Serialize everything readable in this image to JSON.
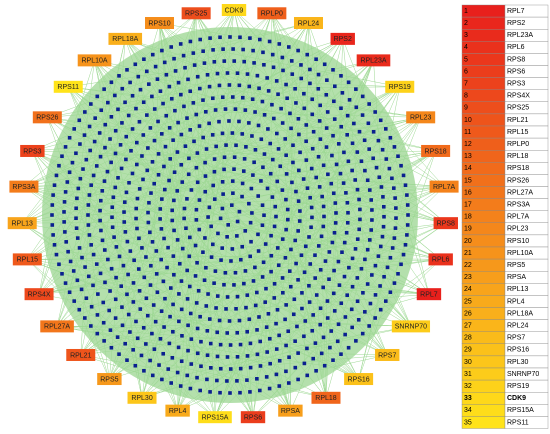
{
  "nodes": [
    "CDK9",
    "RPLP0",
    "RPL24",
    "RPS2",
    "RPL23A",
    "RPS19",
    "RPL23",
    "RPS18",
    "RPL7A",
    "RPS8",
    "RPL6",
    "RPL7",
    "SNRNP70",
    "RPS7",
    "RPS16",
    "RPL18",
    "RPSA",
    "RPS6",
    "RPS15A",
    "RPL4",
    "RPL30",
    "RPS5",
    "RPL21",
    "RPL27A",
    "RPS4X",
    "RPL15",
    "RPL13",
    "RPS3A",
    "RPS3",
    "RPS26",
    "RPS11",
    "RPL10A",
    "RPL18A",
    "RPS10",
    "RPS25"
  ],
  "table": {
    "rows": [
      [
        1,
        "RPL7"
      ],
      [
        2,
        "RPS2"
      ],
      [
        3,
        "RPL23A"
      ],
      [
        4,
        "RPL6"
      ],
      [
        5,
        "RPS8"
      ],
      [
        6,
        "RPS6"
      ],
      [
        7,
        "RPS3"
      ],
      [
        8,
        "RPS4X"
      ],
      [
        9,
        "RPS25"
      ],
      [
        10,
        "RPL21"
      ],
      [
        11,
        "RPL15"
      ],
      [
        12,
        "RPLP0"
      ],
      [
        13,
        "RPL18"
      ],
      [
        14,
        "RPS18"
      ],
      [
        15,
        "RPS26"
      ],
      [
        16,
        "RPL27A"
      ],
      [
        17,
        "RPS3A"
      ],
      [
        18,
        "RPL7A"
      ],
      [
        19,
        "RPL23"
      ],
      [
        20,
        "RPS10"
      ],
      [
        21,
        "RPL10A"
      ],
      [
        22,
        "RPS5"
      ],
      [
        23,
        "RPSA"
      ],
      [
        24,
        "RPL13"
      ],
      [
        25,
        "RPL4"
      ],
      [
        26,
        "RPL18A"
      ],
      [
        27,
        "RPL24"
      ],
      [
        28,
        "RPS7"
      ],
      [
        29,
        "RPS16"
      ],
      [
        30,
        "RPL30"
      ],
      [
        31,
        "SNRNP70"
      ],
      [
        32,
        "RPS19"
      ],
      [
        33,
        "CDK9"
      ],
      [
        34,
        "RPS15A"
      ],
      [
        35,
        "RPS11"
      ]
    ]
  }
}
